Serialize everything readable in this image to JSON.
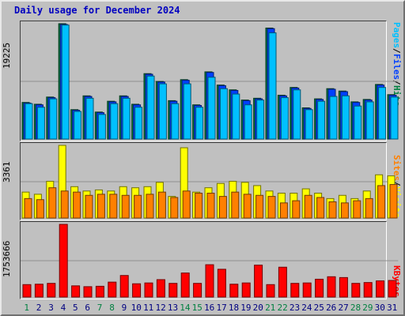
{
  "title": "Daily usage for December 2024",
  "panels": {
    "traffic": {
      "ymax_label": "19225",
      "legend": [
        {
          "text": "Pages",
          "color": "#00c0ff"
        },
        {
          "text": "/",
          "color": "#000000"
        },
        {
          "text": "Files",
          "color": "#0040ff"
        },
        {
          "text": "/",
          "color": "#000000"
        },
        {
          "text": "Hits",
          "color": "#008040"
        }
      ]
    },
    "visits": {
      "ymax_label": "3361",
      "legend": [
        {
          "text": "Sites",
          "color": "#ff8000"
        },
        {
          "text": "/",
          "color": "#000000"
        },
        {
          "text": "Visits",
          "color": "#ffff00"
        }
      ]
    },
    "kbytes": {
      "ymax_label": "1753666",
      "legend": [
        {
          "text": "KBytes",
          "color": "#ff0000"
        }
      ]
    }
  },
  "chart_data": {
    "type": "bar",
    "title": "Daily usage for December 2024",
    "categories": [
      "1",
      "2",
      "3",
      "4",
      "5",
      "6",
      "7",
      "8",
      "9",
      "10",
      "11",
      "12",
      "13",
      "14",
      "15",
      "16",
      "17",
      "18",
      "19",
      "20",
      "21",
      "22",
      "23",
      "24",
      "25",
      "26",
      "27",
      "28",
      "29",
      "30",
      "31"
    ],
    "weekend_days": [
      "1",
      "7",
      "8",
      "14",
      "15",
      "21",
      "22",
      "28",
      "29"
    ],
    "colors": {
      "hits": "#008040",
      "files": "#0040ff",
      "pages": "#00c0ff",
      "visits": "#ffff00",
      "sites": "#ff8000",
      "kbytes": "#ff0000",
      "weekday_label": "#000080",
      "weekend_label": "#008040"
    },
    "panels": [
      {
        "name": "traffic",
        "ymax": 19225,
        "series": [
          {
            "name": "Hits",
            "values": [
              6100,
              5800,
              7000,
              19225,
              4900,
              7200,
              4500,
              6300,
              7200,
              5800,
              10900,
              9600,
              6400,
              9900,
              5700,
              11200,
              9000,
              8200,
              6500,
              6800,
              18500,
              7300,
              8600,
              5200,
              6700,
              8400,
              8000,
              6200,
              6600,
              9100,
              7400
            ]
          },
          {
            "name": "Files",
            "values": [
              6000,
              5700,
              6900,
              19100,
              4800,
              7100,
              4400,
              6200,
              7100,
              5700,
              10800,
              9500,
              6300,
              9800,
              5600,
              11100,
              8900,
              8100,
              6400,
              6700,
              18400,
              7200,
              8500,
              5100,
              6600,
              8300,
              7900,
              6100,
              6500,
              9000,
              7300
            ]
          },
          {
            "name": "Pages",
            "values": [
              5900,
              5300,
              6700,
              19000,
              4600,
              6800,
              4100,
              5900,
              6800,
              5300,
              10500,
              9200,
              5900,
              9200,
              5300,
              10300,
              8400,
              7500,
              5700,
              6500,
              17700,
              6900,
              8200,
              4900,
              6300,
              7100,
              7200,
              5500,
              6200,
              8600,
              7000
            ]
          }
        ]
      },
      {
        "name": "visits",
        "ymax": 3361,
        "series": [
          {
            "name": "Visits",
            "values": [
              1200,
              1100,
              1700,
              3361,
              1450,
              1250,
              1300,
              1250,
              1450,
              1400,
              1450,
              1650,
              1000,
              3250,
              1200,
              1400,
              1600,
              1700,
              1650,
              1500,
              1250,
              1150,
              1150,
              1350,
              1150,
              900,
              1050,
              900,
              1250,
              2000,
              1950
            ]
          },
          {
            "name": "Sites",
            "values": [
              900,
              850,
              1400,
              1250,
              1200,
              1050,
              1100,
              1100,
              1050,
              1050,
              1100,
              1200,
              950,
              1250,
              1150,
              1150,
              1000,
              1200,
              1100,
              1050,
              1000,
              700,
              800,
              1050,
              950,
              750,
              700,
              800,
              900,
              1500,
              1550
            ]
          }
        ]
      },
      {
        "name": "kbytes",
        "ymax": 1753666,
        "series": [
          {
            "name": "KBytes",
            "values": [
              300000,
              310000,
              330000,
              1753666,
              270000,
              250000,
              260000,
              360000,
              520000,
              320000,
              340000,
              420000,
              330000,
              580000,
              330000,
              780000,
              670000,
              310000,
              340000,
              770000,
              300000,
              720000,
              330000,
              340000,
              430000,
              490000,
              470000,
              330000,
              350000,
              390000,
              400000
            ]
          }
        ]
      }
    ]
  }
}
